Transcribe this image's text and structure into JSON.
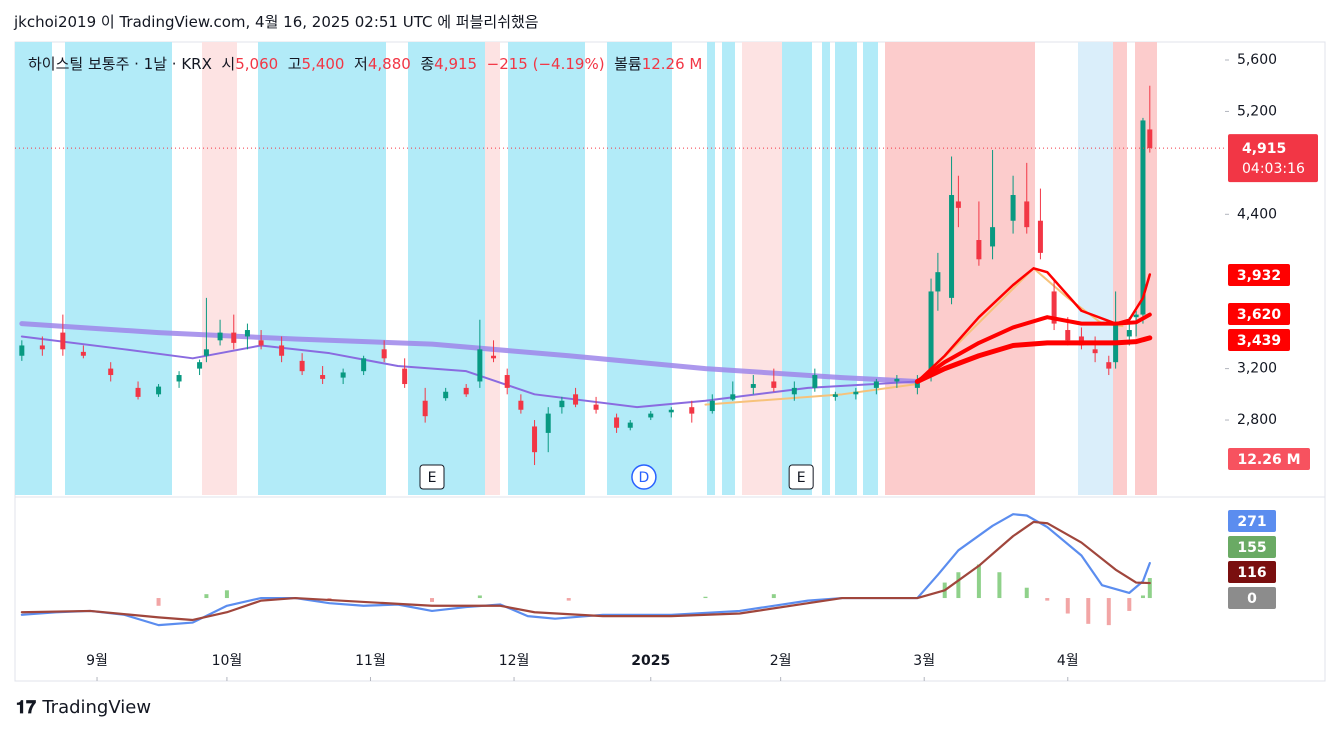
{
  "header": {
    "publisher": "jkchoi2019 이 TradingView.com, 4월 16, 2025 02:51 UTC 에 퍼블리쉬했음",
    "symbol": "하이스틸 보통주 · 1날 · KRX",
    "open_key": "시",
    "open": "5,060",
    "high_key": "고",
    "high": "5,400",
    "low_key": "저",
    "low": "4,880",
    "close_key": "종",
    "close": "4,915",
    "change": "−215 (−4.19%)",
    "volume_key": "볼륨",
    "volume": "12.26 M"
  },
  "footer": {
    "brand": "TradingView"
  },
  "chart_data": [
    {
      "type": "candlestick",
      "up_color": "#089981",
      "down_color": "#f23645",
      "x": [
        0,
        3,
        6,
        9,
        13,
        17,
        20,
        23,
        26,
        27,
        29,
        31,
        33,
        35,
        38,
        41,
        44,
        47,
        50,
        53,
        56,
        59,
        62,
        65,
        67,
        69,
        71,
        73,
        75,
        77,
        79,
        81,
        84,
        87,
        89,
        92,
        95,
        98,
        101,
        104,
        107,
        110,
        113,
        116,
        119,
        122,
        125,
        128,
        131,
        133,
        134,
        136,
        137,
        140,
        142,
        145,
        147,
        149,
        151,
        153,
        155,
        157,
        159,
        160,
        162,
        163,
        164,
        165
      ],
      "open": [
        3300,
        3380,
        3480,
        3330,
        3200,
        3050,
        3000,
        3100,
        3200,
        3300,
        3420,
        3480,
        3450,
        3420,
        3380,
        3260,
        3150,
        3130,
        3180,
        3350,
        3200,
        2950,
        2970,
        3050,
        3100,
        3300,
        3150,
        2950,
        2750,
        2700,
        2900,
        3000,
        2920,
        2820,
        2740,
        2820,
        2860,
        2900,
        2870,
        2960,
        3050,
        3100,
        3000,
        3050,
        2980,
        3000,
        3050,
        3100,
        3050,
        3150,
        3800,
        3750,
        4500,
        4200,
        4150,
        4350,
        4500,
        4350,
        3800,
        3500,
        3450,
        3350,
        3250,
        3250,
        3450,
        3600,
        3620,
        5060
      ],
      "high": [
        3420,
        3450,
        3620,
        3380,
        3250,
        3100,
        3080,
        3180,
        3270,
        3750,
        3580,
        3620,
        3550,
        3500,
        3450,
        3320,
        3220,
        3200,
        3300,
        3420,
        3280,
        3050,
        3050,
        3080,
        3580,
        3420,
        3200,
        3000,
        2800,
        2900,
        2980,
        3050,
        2980,
        2850,
        2800,
        2870,
        2900,
        2950,
        3000,
        3100,
        3150,
        3200,
        3100,
        3200,
        3020,
        3050,
        3120,
        3150,
        3150,
        3900,
        4100,
        4850,
        4700,
        4500,
        4900,
        4700,
        4800,
        4600,
        3900,
        3600,
        3520,
        3450,
        3300,
        3800,
        3600,
        3650,
        5150,
        5400
      ],
      "low": [
        3260,
        3300,
        3300,
        3280,
        3100,
        2960,
        2980,
        3050,
        3150,
        3250,
        3380,
        3350,
        3350,
        3350,
        3250,
        3150,
        3080,
        3080,
        3150,
        3250,
        3050,
        2780,
        2950,
        2980,
        3050,
        3250,
        3000,
        2850,
        2450,
        2550,
        2850,
        2900,
        2850,
        2700,
        2720,
        2800,
        2820,
        2780,
        2850,
        2950,
        3000,
        3020,
        2950,
        3020,
        2950,
        2960,
        3000,
        3050,
        3000,
        3100,
        3650,
        3700,
        4300,
        4000,
        4050,
        4250,
        4250,
        4050,
        3500,
        3380,
        3350,
        3250,
        3150,
        3200,
        3380,
        3450,
        3550,
        4880
      ],
      "close": [
        3380,
        3350,
        3350,
        3300,
        3150,
        2980,
        3060,
        3150,
        3250,
        3350,
        3480,
        3400,
        3500,
        3380,
        3300,
        3180,
        3120,
        3170,
        3280,
        3280,
        3080,
        2830,
        3020,
        3000,
        3350,
        3280,
        3050,
        2880,
        2550,
        2850,
        2950,
        2920,
        2880,
        2740,
        2780,
        2850,
        2880,
        2850,
        2950,
        3000,
        3080,
        3050,
        3050,
        3150,
        3000,
        3020,
        3100,
        3120,
        3100,
        3800,
        3950,
        4550,
        4450,
        4050,
        4300,
        4550,
        4300,
        4100,
        3550,
        3420,
        3380,
        3320,
        3200,
        3550,
        3500,
        3620,
        5130,
        4915
      ],
      "series": [
        {
          "color": "#9d86ea",
          "width": 5,
          "x": [
            0,
            20,
            40,
            60,
            80,
            100,
            120,
            131
          ],
          "values": [
            3550,
            3480,
            3430,
            3390,
            3300,
            3200,
            3130,
            3100
          ]
        },
        {
          "color": "#8a6be0",
          "width": 2,
          "x": [
            0,
            15,
            25,
            35,
            45,
            55,
            65,
            75,
            90,
            100,
            115,
            131
          ],
          "values": [
            3450,
            3350,
            3280,
            3380,
            3320,
            3220,
            3180,
            3000,
            2900,
            2950,
            3050,
            3100
          ]
        },
        {
          "color": "#f7c27a",
          "width": 2,
          "x": [
            100,
            120,
            131,
            148,
            153,
            158,
            161
          ],
          "values": [
            2920,
            3000,
            3080,
            3980,
            3750,
            3550,
            3530
          ]
        },
        {
          "color": "#ff0000",
          "width": 2.5,
          "x": [
            131,
            135,
            140,
            145,
            148,
            150,
            155,
            160,
            162,
            164,
            165
          ],
          "values": [
            3100,
            3300,
            3600,
            3850,
            3980,
            3950,
            3650,
            3550,
            3580,
            3750,
            3932
          ],
          "last_label": "3,932"
        },
        {
          "color": "#ff0000",
          "width": 4,
          "x": [
            131,
            135,
            140,
            145,
            150,
            155,
            160,
            163,
            165
          ],
          "values": [
            3100,
            3250,
            3400,
            3520,
            3600,
            3550,
            3550,
            3560,
            3620
          ],
          "last_label": "3,620"
        },
        {
          "color": "#ff0000",
          "width": 5,
          "x": [
            131,
            135,
            140,
            145,
            150,
            155,
            160,
            163,
            165
          ],
          "values": [
            3100,
            3200,
            3300,
            3380,
            3400,
            3400,
            3400,
            3410,
            3439
          ],
          "last_label": "3,439"
        }
      ],
      "price_line": {
        "value": 4915,
        "label": "4,915",
        "timer": "04:03:16",
        "volume_label": "12.26 M"
      },
      "events": [
        {
          "x": 60,
          "label": "E"
        },
        {
          "x": 91,
          "label": "D"
        },
        {
          "x": 114,
          "label": "E"
        }
      ],
      "xlim": [
        -1,
        176
      ],
      "xticks": [
        {
          "value": 11,
          "label": "9월"
        },
        {
          "value": 30,
          "label": "10월"
        },
        {
          "value": 51,
          "label": "11월"
        },
        {
          "value": 72,
          "label": "12월"
        },
        {
          "value": 92,
          "label": "2025"
        },
        {
          "value": 111,
          "label": "2월"
        },
        {
          "value": 132,
          "label": "3월"
        },
        {
          "value": 153,
          "label": "4월"
        }
      ],
      "ylim": [
        2217,
        5740
      ],
      "yticks": [
        {
          "value": 2800,
          "label": "2,800"
        },
        {
          "value": 3200,
          "label": "3,200"
        },
        {
          "value": 4400,
          "label": "4,400"
        },
        {
          "value": 5200,
          "label": "5,200"
        },
        {
          "value": 5600,
          "label": "5,600"
        }
      ]
    },
    {
      "type": "line",
      "xlim": [
        -1,
        176
      ],
      "ylim": [
        -364,
        760
      ],
      "yticks": [
        0
      ],
      "series": [
        {
          "color": "#5b8def",
          "x": [
            0,
            5,
            10,
            15,
            20,
            25,
            30,
            35,
            40,
            45,
            50,
            55,
            60,
            65,
            70,
            74,
            78,
            85,
            95,
            105,
            115,
            120,
            131,
            134,
            137,
            142,
            145,
            147,
            150,
            155,
            158,
            162,
            164,
            165
          ],
          "values": [
            -130,
            -110,
            -100,
            -130,
            -210,
            -190,
            -60,
            0,
            0,
            -40,
            -60,
            -50,
            -100,
            -70,
            -50,
            -140,
            -160,
            -130,
            -130,
            -100,
            -20,
            0,
            0,
            180,
            370,
            560,
            650,
            640,
            550,
            330,
            100,
            40,
            130,
            271
          ]
        },
        {
          "color": "#a0463c",
          "x": [
            0,
            10,
            20,
            25,
            30,
            35,
            40,
            50,
            60,
            70,
            75,
            85,
            95,
            105,
            115,
            120,
            131,
            135,
            140,
            145,
            148,
            150,
            155,
            160,
            163,
            165
          ],
          "values": [
            -110,
            -100,
            -150,
            -170,
            -110,
            -20,
            0,
            -30,
            -60,
            -60,
            -110,
            -140,
            -140,
            -120,
            -40,
            0,
            0,
            60,
            250,
            480,
            590,
            580,
            430,
            220,
            120,
            116
          ]
        }
      ],
      "histogram": {
        "up_color": "#8fd18a",
        "down_color": "#f2a5a5",
        "x": [
          20,
          27,
          30,
          45,
          60,
          67,
          80,
          100,
          110,
          135,
          137,
          140,
          143,
          147,
          150,
          153,
          156,
          159,
          162,
          164,
          165
        ],
        "values": [
          -60,
          30,
          60,
          -20,
          -30,
          20,
          -20,
          10,
          30,
          120,
          200,
          260,
          200,
          80,
          -20,
          -120,
          -200,
          -210,
          -100,
          20,
          155
        ]
      }
    }
  ]
}
